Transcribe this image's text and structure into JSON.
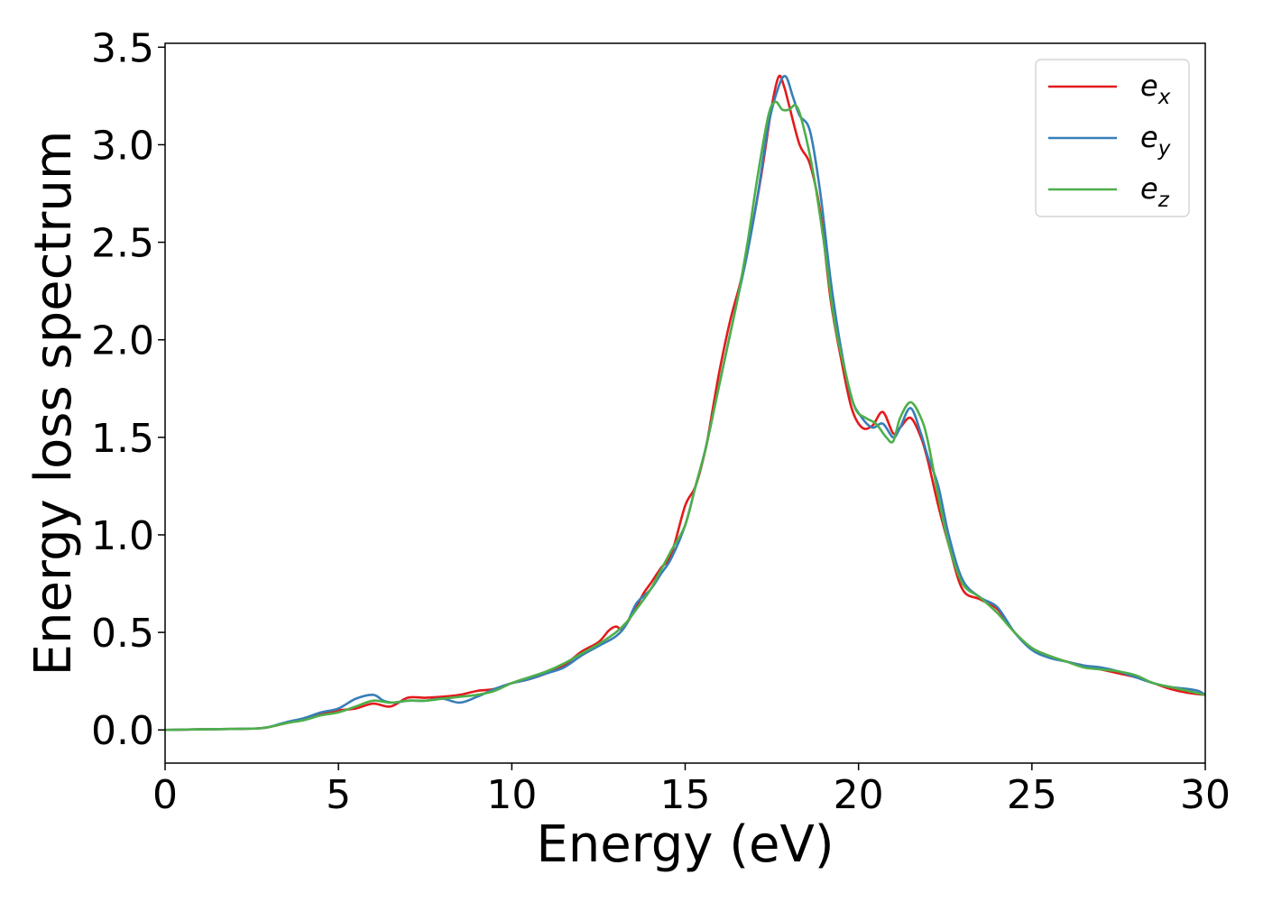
{
  "chart_data": {
    "type": "line",
    "title": "",
    "xlabel": "Energy (eV)",
    "ylabel": "Energy loss spectrum",
    "xlim": [
      0,
      30
    ],
    "ylim": [
      -0.17,
      3.52
    ],
    "x_ticks": [
      0,
      5,
      10,
      15,
      20,
      25,
      30
    ],
    "y_ticks": [
      0.0,
      0.5,
      1.0,
      1.5,
      2.0,
      2.5,
      3.0,
      3.5
    ],
    "grid": false,
    "legend_position": "top-right",
    "colors": {
      "e_x": "#e41a1c",
      "e_y": "#377eb8",
      "e_z": "#4daf4a"
    },
    "series": [
      {
        "name": "e_x",
        "label_base": "e",
        "label_sub": "x",
        "color": "#e41a1c",
        "x": [
          0,
          1,
          2,
          2.7,
          3,
          3.5,
          4,
          4.5,
          5,
          5.5,
          6,
          6.5,
          7,
          7.5,
          8,
          8.5,
          9,
          9.5,
          10,
          10.5,
          11,
          11.5,
          12,
          12.5,
          12.8,
          13,
          13.2,
          13.5,
          13.8,
          14,
          14.3,
          14.6,
          15,
          15.3,
          15.6,
          15.8,
          16,
          16.3,
          16.6,
          16.9,
          17.2,
          17.5,
          17.7,
          17.85,
          18,
          18.3,
          18.6,
          18.9,
          19.2,
          19.5,
          19.8,
          20.1,
          20.4,
          20.7,
          21,
          21.2,
          21.5,
          21.8,
          22,
          22.3,
          22.6,
          23,
          23.5,
          24,
          24.5,
          25,
          25.5,
          26,
          26.5,
          27,
          27.5,
          28,
          28.5,
          29,
          29.5,
          30
        ],
        "y": [
          0,
          0.003,
          0.005,
          0.008,
          0.015,
          0.035,
          0.055,
          0.08,
          0.1,
          0.11,
          0.135,
          0.12,
          0.165,
          0.165,
          0.17,
          0.18,
          0.2,
          0.21,
          0.24,
          0.26,
          0.29,
          0.33,
          0.4,
          0.45,
          0.51,
          0.53,
          0.52,
          0.6,
          0.7,
          0.75,
          0.83,
          0.9,
          1.15,
          1.25,
          1.45,
          1.65,
          1.85,
          2.1,
          2.3,
          2.55,
          2.85,
          3.2,
          3.35,
          3.3,
          3.2,
          3.0,
          2.9,
          2.65,
          2.2,
          1.9,
          1.65,
          1.55,
          1.56,
          1.63,
          1.52,
          1.55,
          1.6,
          1.5,
          1.38,
          1.15,
          0.95,
          0.72,
          0.67,
          0.62,
          0.5,
          0.42,
          0.38,
          0.35,
          0.33,
          0.31,
          0.29,
          0.27,
          0.24,
          0.21,
          0.19,
          0.18
        ]
      },
      {
        "name": "e_y",
        "label_base": "e",
        "label_sub": "y",
        "color": "#377eb8",
        "x": [
          0,
          1,
          2,
          2.7,
          3,
          3.5,
          4,
          4.5,
          5,
          5.5,
          6,
          6.3,
          6.6,
          7,
          7.5,
          8,
          8.5,
          9,
          9.5,
          10,
          10.5,
          11,
          11.5,
          12,
          12.5,
          13,
          13.3,
          13.6,
          14,
          14.3,
          14.6,
          15,
          15.3,
          15.6,
          15.9,
          16.2,
          16.5,
          16.8,
          17.1,
          17.4,
          17.7,
          17.9,
          18.1,
          18.3,
          18.6,
          18.9,
          19.2,
          19.5,
          19.8,
          20.1,
          20.4,
          20.7,
          21,
          21.2,
          21.5,
          21.8,
          22,
          22.3,
          22.6,
          23,
          23.5,
          24,
          24.5,
          25,
          25.5,
          26,
          26.5,
          27,
          27.5,
          28,
          28.5,
          29,
          29.5,
          29.8,
          30
        ],
        "y": [
          0,
          0.003,
          0.005,
          0.008,
          0.015,
          0.04,
          0.06,
          0.09,
          0.11,
          0.16,
          0.18,
          0.15,
          0.14,
          0.15,
          0.15,
          0.16,
          0.14,
          0.17,
          0.21,
          0.24,
          0.26,
          0.29,
          0.32,
          0.38,
          0.43,
          0.48,
          0.54,
          0.65,
          0.72,
          0.8,
          0.88,
          1.05,
          1.25,
          1.45,
          1.7,
          1.95,
          2.2,
          2.45,
          2.75,
          3.1,
          3.3,
          3.35,
          3.25,
          3.15,
          3.07,
          2.75,
          2.3,
          1.95,
          1.7,
          1.6,
          1.55,
          1.57,
          1.5,
          1.55,
          1.65,
          1.52,
          1.4,
          1.25,
          1.0,
          0.77,
          0.68,
          0.63,
          0.5,
          0.41,
          0.37,
          0.35,
          0.33,
          0.32,
          0.3,
          0.27,
          0.24,
          0.22,
          0.21,
          0.2,
          0.18
        ]
      },
      {
        "name": "e_z",
        "label_base": "e",
        "label_sub": "z",
        "color": "#4daf4a",
        "x": [
          0,
          1,
          2,
          2.7,
          3,
          3.5,
          4,
          4.5,
          5,
          5.5,
          6,
          6.5,
          7,
          7.5,
          8,
          8.5,
          9,
          9.5,
          10,
          10.5,
          11,
          11.5,
          12,
          12.5,
          13,
          13.3,
          13.6,
          14,
          14.3,
          14.6,
          15,
          15.3,
          15.6,
          15.9,
          16.2,
          16.5,
          16.8,
          17.1,
          17.4,
          17.6,
          17.8,
          18,
          18.2,
          18.4,
          18.7,
          19,
          19.3,
          19.6,
          19.9,
          20.2,
          20.5,
          20.8,
          21,
          21.2,
          21.5,
          21.8,
          22,
          22.3,
          22.6,
          23,
          23.5,
          24,
          24.5,
          25,
          25.5,
          26,
          26.5,
          27,
          27.5,
          28,
          28.5,
          29,
          29.5,
          30
        ],
        "y": [
          0,
          0.003,
          0.005,
          0.008,
          0.015,
          0.035,
          0.05,
          0.075,
          0.09,
          0.12,
          0.15,
          0.14,
          0.15,
          0.15,
          0.16,
          0.17,
          0.18,
          0.2,
          0.24,
          0.27,
          0.3,
          0.34,
          0.39,
          0.44,
          0.5,
          0.55,
          0.62,
          0.72,
          0.82,
          0.92,
          1.05,
          1.25,
          1.45,
          1.7,
          1.95,
          2.2,
          2.5,
          2.85,
          3.15,
          3.22,
          3.18,
          3.18,
          3.2,
          3.1,
          2.85,
          2.5,
          2.1,
          1.85,
          1.65,
          1.6,
          1.57,
          1.5,
          1.48,
          1.6,
          1.68,
          1.6,
          1.48,
          1.2,
          0.95,
          0.75,
          0.68,
          0.6,
          0.5,
          0.42,
          0.38,
          0.35,
          0.32,
          0.31,
          0.3,
          0.28,
          0.24,
          0.22,
          0.2,
          0.18
        ]
      }
    ]
  }
}
